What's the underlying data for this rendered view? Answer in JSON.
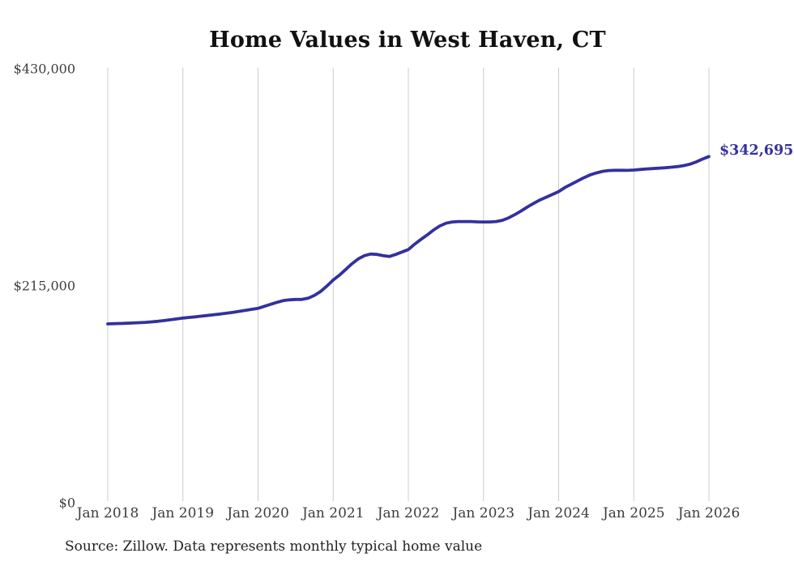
{
  "title": "Home Values in West Haven, CT",
  "footer": {
    "source_note": "Source: Zillow. Data represents monthly typical home value"
  },
  "annotation": {
    "end_value_label": "$342,695"
  },
  "colors": {
    "accent": "#34309e",
    "grid": "#cccccc",
    "axis_text": "#3d3d3d",
    "title_text": "#111111",
    "background": "#ffffff"
  },
  "chart_data": {
    "type": "line",
    "title": "Home Values in West Haven, CT",
    "xlabel": "",
    "ylabel": "",
    "ylim": [
      0,
      430000
    ],
    "grid": "vertical-only",
    "legend": "none",
    "x_tick_labels": [
      "Jan 2018",
      "Jan 2019",
      "Jan 2020",
      "Jan 2021",
      "Jan 2022",
      "Jan 2023",
      "Jan 2024",
      "Jan 2025",
      "Jan 2026"
    ],
    "y_ticks": [
      {
        "label": "$0",
        "value": 0
      },
      {
        "label": "$215,000",
        "value": 215000
      },
      {
        "label": "$430,000",
        "value": 430000
      }
    ],
    "series": [
      {
        "name": "Typical home value",
        "color": "#34309e",
        "start": "2018-01",
        "interval": "monthly",
        "end": "2026-01",
        "values": [
          176900,
          177100,
          177300,
          177500,
          177800,
          178100,
          178400,
          178900,
          179500,
          180200,
          181000,
          181800,
          182700,
          183300,
          183900,
          184600,
          185300,
          186000,
          186700,
          187500,
          188400,
          189300,
          190300,
          191300,
          192300,
          194300,
          196300,
          198200,
          199900,
          200700,
          201100,
          201100,
          202300,
          205100,
          209100,
          214400,
          220400,
          225200,
          230800,
          236500,
          241300,
          244500,
          246100,
          245700,
          244500,
          243700,
          245700,
          248100,
          250500,
          255800,
          260600,
          265000,
          269800,
          273800,
          276600,
          277900,
          278300,
          278300,
          278300,
          278000,
          277900,
          277900,
          278300,
          279500,
          281900,
          285100,
          288700,
          292700,
          296300,
          299600,
          302400,
          305200,
          308000,
          312000,
          315200,
          318400,
          321600,
          324400,
          326400,
          328000,
          328800,
          329100,
          329100,
          329000,
          329300,
          329900,
          330400,
          330800,
          331200,
          331600,
          332100,
          332800,
          333700,
          335200,
          337400,
          340200,
          342695
        ],
        "final_value": 342695
      }
    ]
  }
}
